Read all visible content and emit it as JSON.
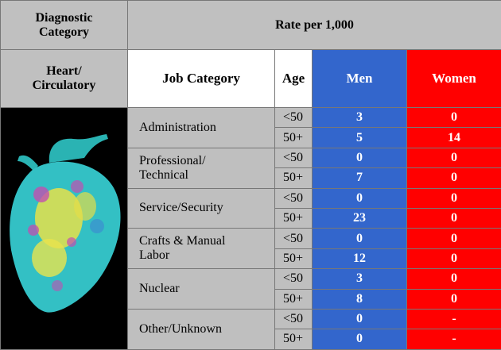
{
  "header": {
    "diagnostic_category": [
      "Diagnostic",
      "Category"
    ],
    "rate": "Rate per 1,000",
    "diagnosis": [
      "Heart/",
      "Circulatory"
    ],
    "job_category": "Job Category",
    "age": "Age",
    "men": "Men",
    "women": "Women"
  },
  "groups": [
    {
      "job": [
        "Administration"
      ],
      "rows": [
        {
          "age": "<50",
          "men": 3,
          "women": 0
        },
        {
          "age": "50+",
          "men": 5,
          "women": 14
        }
      ]
    },
    {
      "job": [
        "Professional/",
        "Technical"
      ],
      "rows": [
        {
          "age": "<50",
          "men": 0,
          "women": 0
        },
        {
          "age": "50+",
          "men": 7,
          "women": 0
        }
      ]
    },
    {
      "job": [
        "Service/Security"
      ],
      "rows": [
        {
          "age": "<50",
          "men": 0,
          "women": 0
        },
        {
          "age": "50+",
          "men": 23,
          "women": 0
        }
      ]
    },
    {
      "job": [
        "Crafts & Manual",
        "Labor"
      ],
      "rows": [
        {
          "age": "<50",
          "men": 0,
          "women": 0
        },
        {
          "age": "50+",
          "men": 12,
          "women": 0
        }
      ]
    },
    {
      "job": [
        "Nuclear"
      ],
      "rows": [
        {
          "age": "<50",
          "men": 3,
          "women": 0
        },
        {
          "age": "50+",
          "men": 8,
          "women": 0
        }
      ]
    },
    {
      "job": [
        "Other/Unknown"
      ],
      "rows": [
        {
          "age": "<50",
          "men": 0,
          "women": "-"
        },
        {
          "age": "50+",
          "men": 0,
          "women": "-"
        }
      ]
    }
  ]
}
